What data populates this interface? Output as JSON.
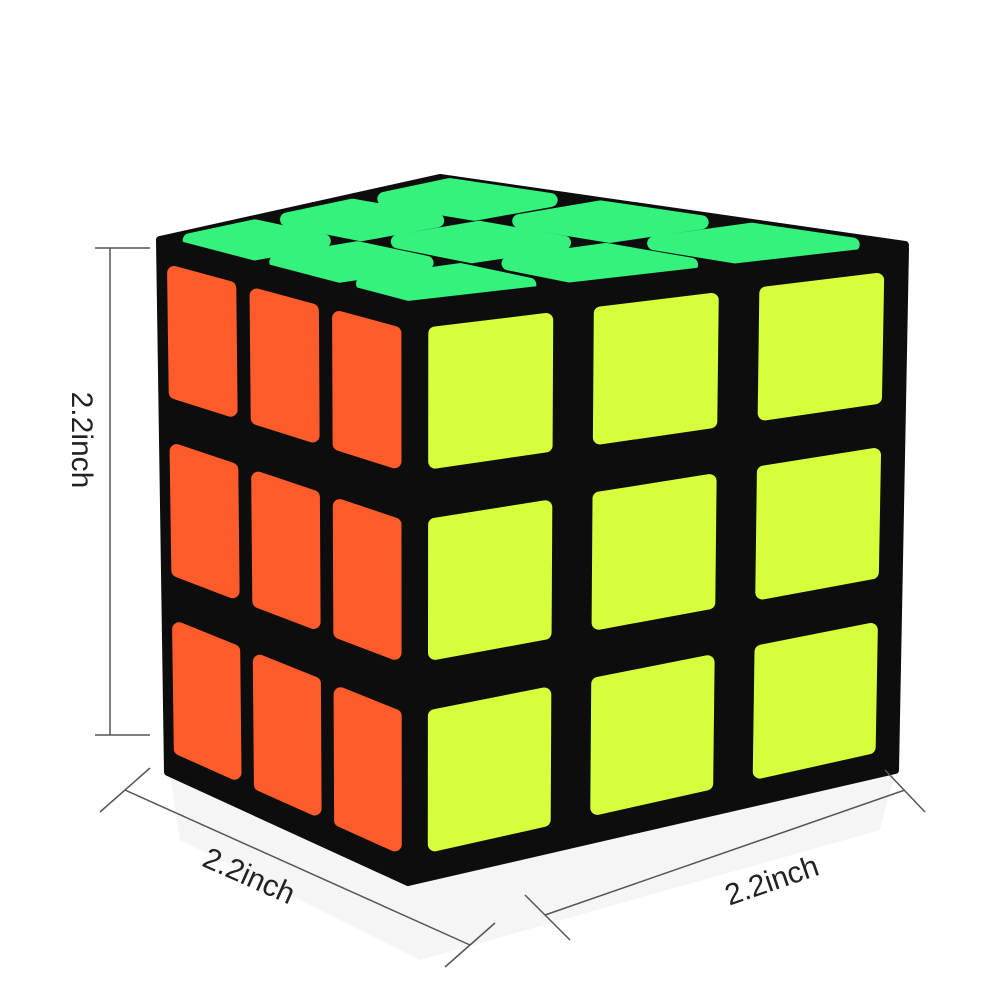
{
  "dimensions": {
    "height_label": "2.2inch",
    "depth_label": "2.2inch",
    "width_label": "2.2inch"
  },
  "colors": {
    "body": "#0d0d0d",
    "left_face": "#ff5b2b",
    "right_face": "#d6ff3c",
    "top_face": "#35f27c",
    "dimension_line": "#555555"
  }
}
